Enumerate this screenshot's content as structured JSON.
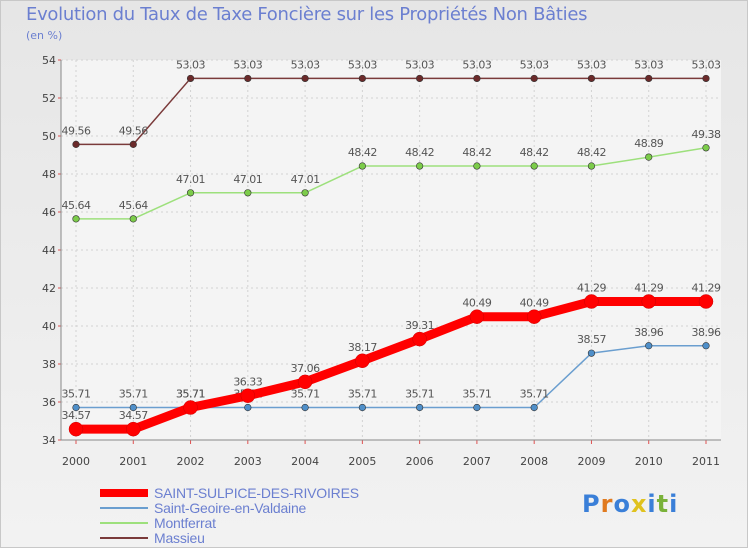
{
  "chart_data": {
    "type": "line",
    "title": "Evolution du Taux de Taxe Foncière sur les Propriétés Non Bâties",
    "ylabel": "(en %)",
    "xlabel": "",
    "ylim": [
      34,
      54
    ],
    "yticks": [
      34,
      36,
      38,
      40,
      42,
      44,
      46,
      48,
      50,
      52,
      54
    ],
    "categories": [
      "2000",
      "2001",
      "2002",
      "2003",
      "2004",
      "2005",
      "2006",
      "2007",
      "2008",
      "2009",
      "2010",
      "2011"
    ],
    "series": [
      {
        "name": "SAINT-SULPICE-DES-RIVOIRES",
        "color": "#ff0000",
        "dot": "#ff0000",
        "values": [
          34.57,
          34.57,
          35.71,
          36.33,
          37.06,
          38.17,
          39.31,
          40.49,
          40.49,
          41.29,
          41.29,
          41.29
        ],
        "labels": [
          "34.57",
          "34.57",
          "35.71",
          "36.33",
          "37.06",
          "38.17",
          "39.31",
          "40.49",
          "40.49",
          "41.29",
          "41.29",
          "41.29"
        ]
      },
      {
        "name": "Saint-Geoire-en-Valdaine",
        "color": "#6a9ecf",
        "dot": "#4f8fc9",
        "values": [
          35.71,
          35.71,
          35.71,
          35.71,
          35.71,
          35.71,
          35.71,
          35.71,
          35.71,
          38.57,
          38.96,
          38.96
        ],
        "labels": [
          "35.71",
          "35.71",
          "35.71",
          "35.71",
          "35.71",
          "35.71",
          "35.71",
          "35.71",
          "35.71",
          "38.57",
          "38.96",
          "38.96"
        ]
      },
      {
        "name": "Montferrat",
        "color": "#9de07c",
        "dot": "#7ccc4a",
        "values": [
          45.64,
          45.64,
          47.01,
          47.01,
          47.01,
          48.42,
          48.42,
          48.42,
          48.42,
          48.42,
          48.89,
          49.38
        ],
        "labels": [
          "45.64",
          "45.64",
          "47.01",
          "47.01",
          "47.01",
          "48.42",
          "48.42",
          "48.42",
          "48.42",
          "48.42",
          "48.89",
          "49.38"
        ]
      },
      {
        "name": "Massieu",
        "color": "#7a3a3a",
        "dot": "#6b2a2a",
        "values": [
          49.56,
          49.56,
          53.03,
          53.03,
          53.03,
          53.03,
          53.03,
          53.03,
          53.03,
          53.03,
          53.03,
          53.03
        ],
        "labels": [
          "49.56",
          "49.56",
          "53.03",
          "53.03",
          "53.03",
          "53.03",
          "53.03",
          "53.03",
          "53.03",
          "53.03",
          "53.03",
          "53.03"
        ]
      }
    ],
    "legend_position": "bottom-left",
    "grid": true
  },
  "logo": {
    "letters": [
      "P",
      "r",
      "o",
      "x",
      "i",
      "t",
      "i"
    ],
    "colors": [
      "#3a7fd8",
      "#e07a1f",
      "#3a7fd8",
      "#e0c21f",
      "#3a7fd8",
      "#7ab23a",
      "#3a7fd8"
    ]
  }
}
